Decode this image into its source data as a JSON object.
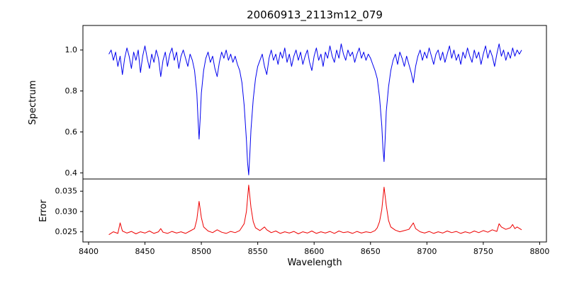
{
  "chart_data": {
    "type": "line",
    "title": "20060913_2113m12_079",
    "xlabel": "Wavelength",
    "grid": false,
    "legend": null,
    "xlim": [
      8395,
      8806
    ],
    "xticks": [
      8400,
      8450,
      8500,
      8550,
      8600,
      8650,
      8700,
      8750,
      8800
    ],
    "xtick_labels": [
      "8400",
      "8450",
      "8500",
      "8550",
      "8600",
      "8650",
      "8700",
      "8750",
      "8800"
    ],
    "panels": [
      {
        "name": "spectrum",
        "ylabel": "Spectrum",
        "color": "#0000ee",
        "ylim": [
          0.37,
          1.12
        ],
        "yticks": [
          0.4,
          0.6,
          0.8,
          1.0
        ],
        "ytick_labels": [
          "0.4",
          "0.6",
          "0.8",
          "1.0"
        ],
        "absorption_lines": [
          {
            "center": 8498,
            "min": 0.565
          },
          {
            "center": 8542,
            "min": 0.39
          },
          {
            "center": 8662,
            "min": 0.455
          }
        ],
        "points": [
          [
            8418,
            0.98
          ],
          [
            8420,
            1.0
          ],
          [
            8422,
            0.95
          ],
          [
            8424,
            0.99
          ],
          [
            8426,
            0.92
          ],
          [
            8428,
            0.97
          ],
          [
            8430,
            0.88
          ],
          [
            8432,
            0.96
          ],
          [
            8434,
            1.01
          ],
          [
            8436,
            0.97
          ],
          [
            8438,
            0.91
          ],
          [
            8440,
            0.99
          ],
          [
            8442,
            0.95
          ],
          [
            8444,
            1.0
          ],
          [
            8446,
            0.89
          ],
          [
            8448,
            0.97
          ],
          [
            8450,
            1.02
          ],
          [
            8452,
            0.96
          ],
          [
            8454,
            0.91
          ],
          [
            8456,
            0.98
          ],
          [
            8458,
            0.94
          ],
          [
            8460,
            1.0
          ],
          [
            8462,
            0.96
          ],
          [
            8464,
            0.87
          ],
          [
            8466,
            0.95
          ],
          [
            8468,
            0.99
          ],
          [
            8470,
            0.92
          ],
          [
            8472,
            0.98
          ],
          [
            8474,
            1.01
          ],
          [
            8476,
            0.95
          ],
          [
            8478,
            0.99
          ],
          [
            8480,
            0.91
          ],
          [
            8482,
            0.97
          ],
          [
            8484,
            1.0
          ],
          [
            8486,
            0.96
          ],
          [
            8488,
            0.92
          ],
          [
            8490,
            0.98
          ],
          [
            8492,
            0.95
          ],
          [
            8494,
            0.9
          ],
          [
            8496,
            0.79
          ],
          [
            8497,
            0.67
          ],
          [
            8498,
            0.565
          ],
          [
            8499,
            0.67
          ],
          [
            8500,
            0.79
          ],
          [
            8502,
            0.9
          ],
          [
            8504,
            0.96
          ],
          [
            8506,
            0.99
          ],
          [
            8508,
            0.94
          ],
          [
            8510,
            0.97
          ],
          [
            8512,
            0.91
          ],
          [
            8514,
            0.87
          ],
          [
            8516,
            0.94
          ],
          [
            8518,
            0.99
          ],
          [
            8520,
            0.96
          ],
          [
            8522,
            1.0
          ],
          [
            8524,
            0.95
          ],
          [
            8526,
            0.98
          ],
          [
            8528,
            0.94
          ],
          [
            8530,
            0.97
          ],
          [
            8532,
            0.93
          ],
          [
            8534,
            0.9
          ],
          [
            8536,
            0.84
          ],
          [
            8538,
            0.73
          ],
          [
            8540,
            0.56
          ],
          [
            8541,
            0.45
          ],
          [
            8542,
            0.39
          ],
          [
            8543,
            0.49
          ],
          [
            8544,
            0.61
          ],
          [
            8546,
            0.76
          ],
          [
            8548,
            0.86
          ],
          [
            8550,
            0.92
          ],
          [
            8552,
            0.95
          ],
          [
            8554,
            0.98
          ],
          [
            8556,
            0.92
          ],
          [
            8558,
            0.88
          ],
          [
            8560,
            0.96
          ],
          [
            8562,
            1.0
          ],
          [
            8564,
            0.95
          ],
          [
            8566,
            0.98
          ],
          [
            8568,
            0.93
          ],
          [
            8570,
            0.99
          ],
          [
            8572,
            0.96
          ],
          [
            8574,
            1.01
          ],
          [
            8576,
            0.94
          ],
          [
            8578,
            0.98
          ],
          [
            8580,
            0.92
          ],
          [
            8582,
            0.97
          ],
          [
            8584,
            1.0
          ],
          [
            8586,
            0.95
          ],
          [
            8588,
            0.99
          ],
          [
            8590,
            0.93
          ],
          [
            8592,
            0.97
          ],
          [
            8594,
            1.0
          ],
          [
            8596,
            0.94
          ],
          [
            8598,
            0.9
          ],
          [
            8600,
            0.97
          ],
          [
            8602,
            1.01
          ],
          [
            8604,
            0.95
          ],
          [
            8606,
            0.98
          ],
          [
            8608,
            0.92
          ],
          [
            8610,
            0.99
          ],
          [
            8612,
            0.96
          ],
          [
            8614,
            1.02
          ],
          [
            8616,
            0.97
          ],
          [
            8618,
            0.94
          ],
          [
            8620,
            1.0
          ],
          [
            8622,
            0.96
          ],
          [
            8624,
            1.03
          ],
          [
            8626,
            0.98
          ],
          [
            8628,
            0.95
          ],
          [
            8630,
            1.0
          ],
          [
            8632,
            0.97
          ],
          [
            8634,
            0.99
          ],
          [
            8636,
            0.94
          ],
          [
            8638,
            0.98
          ],
          [
            8640,
            1.01
          ],
          [
            8642,
            0.96
          ],
          [
            8644,
            0.99
          ],
          [
            8646,
            0.95
          ],
          [
            8648,
            0.98
          ],
          [
            8650,
            0.96
          ],
          [
            8652,
            0.93
          ],
          [
            8654,
            0.9
          ],
          [
            8656,
            0.86
          ],
          [
            8658,
            0.77
          ],
          [
            8660,
            0.63
          ],
          [
            8661,
            0.52
          ],
          [
            8662,
            0.455
          ],
          [
            8663,
            0.57
          ],
          [
            8664,
            0.7
          ],
          [
            8666,
            0.82
          ],
          [
            8668,
            0.9
          ],
          [
            8670,
            0.95
          ],
          [
            8672,
            0.98
          ],
          [
            8674,
            0.93
          ],
          [
            8676,
            0.99
          ],
          [
            8678,
            0.96
          ],
          [
            8680,
            0.92
          ],
          [
            8682,
            0.97
          ],
          [
            8684,
            0.93
          ],
          [
            8686,
            0.89
          ],
          [
            8688,
            0.84
          ],
          [
            8690,
            0.92
          ],
          [
            8692,
            0.97
          ],
          [
            8694,
            1.0
          ],
          [
            8696,
            0.95
          ],
          [
            8698,
            0.99
          ],
          [
            8700,
            0.96
          ],
          [
            8702,
            1.01
          ],
          [
            8704,
            0.97
          ],
          [
            8706,
            0.93
          ],
          [
            8708,
            0.98
          ],
          [
            8710,
            1.0
          ],
          [
            8712,
            0.95
          ],
          [
            8714,
            0.99
          ],
          [
            8716,
            0.94
          ],
          [
            8718,
            0.98
          ],
          [
            8720,
            1.02
          ],
          [
            8722,
            0.96
          ],
          [
            8724,
            1.0
          ],
          [
            8726,
            0.95
          ],
          [
            8728,
            0.98
          ],
          [
            8730,
            0.93
          ],
          [
            8732,
            0.99
          ],
          [
            8734,
            0.96
          ],
          [
            8736,
            1.01
          ],
          [
            8738,
            0.97
          ],
          [
            8740,
            0.94
          ],
          [
            8742,
            1.0
          ],
          [
            8744,
            0.96
          ],
          [
            8746,
            0.99
          ],
          [
            8748,
            0.93
          ],
          [
            8750,
            0.98
          ],
          [
            8752,
            1.02
          ],
          [
            8754,
            0.96
          ],
          [
            8756,
            1.0
          ],
          [
            8758,
            0.97
          ],
          [
            8760,
            0.92
          ],
          [
            8762,
            0.98
          ],
          [
            8764,
            1.03
          ],
          [
            8766,
            0.97
          ],
          [
            8768,
            1.0
          ],
          [
            8770,
            0.95
          ],
          [
            8772,
            0.99
          ],
          [
            8774,
            0.96
          ],
          [
            8776,
            1.01
          ],
          [
            8778,
            0.97
          ],
          [
            8780,
            1.0
          ],
          [
            8782,
            0.98
          ],
          [
            8784,
            1.0
          ]
        ]
      },
      {
        "name": "error",
        "ylabel": "Error",
        "color": "#ee0000",
        "ylim": [
          0.0225,
          0.038
        ],
        "yticks": [
          0.025,
          0.03,
          0.035
        ],
        "ytick_labels": [
          "0.025",
          "0.030",
          "0.035"
        ],
        "peaks": [
          {
            "center": 8498,
            "max": 0.0325
          },
          {
            "center": 8542,
            "max": 0.0365
          },
          {
            "center": 8662,
            "max": 0.036
          }
        ],
        "points": [
          [
            8418,
            0.0243
          ],
          [
            8422,
            0.025
          ],
          [
            8426,
            0.0246
          ],
          [
            8428,
            0.0272
          ],
          [
            8430,
            0.0252
          ],
          [
            8434,
            0.0247
          ],
          [
            8438,
            0.0251
          ],
          [
            8442,
            0.0245
          ],
          [
            8446,
            0.025
          ],
          [
            8450,
            0.0247
          ],
          [
            8454,
            0.0252
          ],
          [
            8458,
            0.0246
          ],
          [
            8462,
            0.025
          ],
          [
            8464,
            0.0258
          ],
          [
            8466,
            0.0249
          ],
          [
            8470,
            0.0246
          ],
          [
            8474,
            0.0251
          ],
          [
            8478,
            0.0247
          ],
          [
            8482,
            0.025
          ],
          [
            8486,
            0.0246
          ],
          [
            8490,
            0.0252
          ],
          [
            8494,
            0.0258
          ],
          [
            8496,
            0.028
          ],
          [
            8498,
            0.0325
          ],
          [
            8500,
            0.0285
          ],
          [
            8502,
            0.0262
          ],
          [
            8506,
            0.0252
          ],
          [
            8510,
            0.0248
          ],
          [
            8514,
            0.0255
          ],
          [
            8518,
            0.0249
          ],
          [
            8522,
            0.0246
          ],
          [
            8526,
            0.0251
          ],
          [
            8530,
            0.0248
          ],
          [
            8534,
            0.0253
          ],
          [
            8538,
            0.027
          ],
          [
            8540,
            0.03
          ],
          [
            8542,
            0.0365
          ],
          [
            8544,
            0.031
          ],
          [
            8546,
            0.0275
          ],
          [
            8548,
            0.026
          ],
          [
            8552,
            0.0253
          ],
          [
            8556,
            0.0262
          ],
          [
            8558,
            0.0255
          ],
          [
            8562,
            0.0248
          ],
          [
            8566,
            0.0252
          ],
          [
            8570,
            0.0246
          ],
          [
            8574,
            0.025
          ],
          [
            8578,
            0.0247
          ],
          [
            8582,
            0.0251
          ],
          [
            8586,
            0.0245
          ],
          [
            8590,
            0.025
          ],
          [
            8594,
            0.0247
          ],
          [
            8598,
            0.0252
          ],
          [
            8602,
            0.0246
          ],
          [
            8606,
            0.025
          ],
          [
            8610,
            0.0247
          ],
          [
            8614,
            0.0251
          ],
          [
            8618,
            0.0246
          ],
          [
            8622,
            0.0252
          ],
          [
            8626,
            0.0248
          ],
          [
            8630,
            0.025
          ],
          [
            8634,
            0.0246
          ],
          [
            8638,
            0.0251
          ],
          [
            8642,
            0.0247
          ],
          [
            8646,
            0.025
          ],
          [
            8650,
            0.0248
          ],
          [
            8654,
            0.0253
          ],
          [
            8656,
            0.026
          ],
          [
            8658,
            0.0275
          ],
          [
            8660,
            0.0305
          ],
          [
            8662,
            0.036
          ],
          [
            8664,
            0.0315
          ],
          [
            8666,
            0.0278
          ],
          [
            8668,
            0.0262
          ],
          [
            8672,
            0.0254
          ],
          [
            8676,
            0.025
          ],
          [
            8680,
            0.0253
          ],
          [
            8684,
            0.0256
          ],
          [
            8688,
            0.0272
          ],
          [
            8690,
            0.0258
          ],
          [
            8694,
            0.025
          ],
          [
            8698,
            0.0247
          ],
          [
            8702,
            0.0251
          ],
          [
            8706,
            0.0246
          ],
          [
            8710,
            0.025
          ],
          [
            8714,
            0.0247
          ],
          [
            8718,
            0.0252
          ],
          [
            8722,
            0.0248
          ],
          [
            8726,
            0.0251
          ],
          [
            8730,
            0.0246
          ],
          [
            8734,
            0.025
          ],
          [
            8738,
            0.0247
          ],
          [
            8742,
            0.0252
          ],
          [
            8746,
            0.0248
          ],
          [
            8750,
            0.0253
          ],
          [
            8754,
            0.0249
          ],
          [
            8758,
            0.0255
          ],
          [
            8762,
            0.0251
          ],
          [
            8764,
            0.027
          ],
          [
            8766,
            0.0262
          ],
          [
            8770,
            0.0256
          ],
          [
            8774,
            0.026
          ],
          [
            8776,
            0.0268
          ],
          [
            8778,
            0.0258
          ],
          [
            8780,
            0.0262
          ],
          [
            8784,
            0.0255
          ]
        ]
      }
    ]
  }
}
